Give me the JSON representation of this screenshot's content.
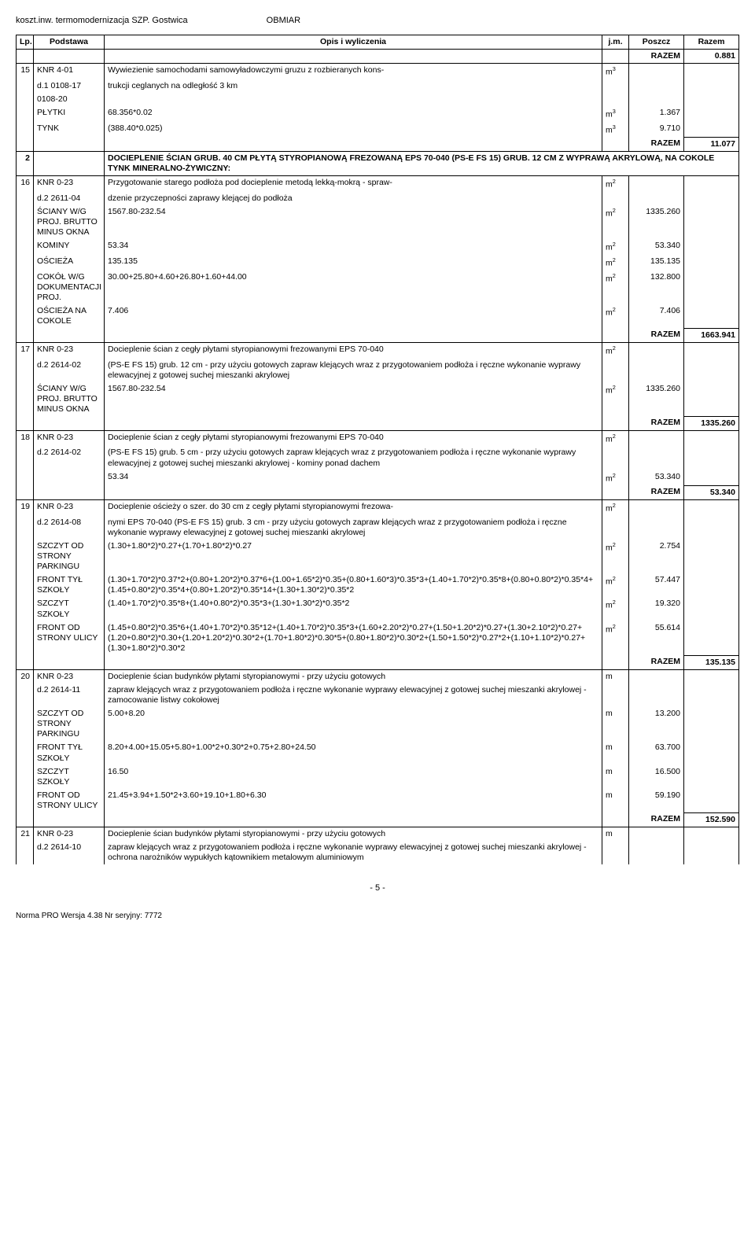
{
  "header": {
    "left": "koszt.inw. termomodernizacja SZP. Gostwica",
    "center": "OBMIAR"
  },
  "columns": [
    "Lp.",
    "Podstawa",
    "Opis i wyliczenia",
    "j.m.",
    "Poszcz",
    "Razem"
  ],
  "rows": [
    {
      "type": "razem",
      "razem_label": "RAZEM",
      "razem_val": "0.881"
    },
    {
      "type": "item",
      "lp": "15",
      "podstawa": "KNR 4-01",
      "opis": "Wywiezienie samochodami samowyładowczymi gruzu z rozbieranych kons-",
      "jm": "m3"
    },
    {
      "type": "cont",
      "podstawa": "d.1",
      "p2": "0108-17",
      "opis": "trukcji ceglanych na odległość 3 km"
    },
    {
      "type": "cont",
      "p2": "0108-20",
      "opis": ""
    },
    {
      "type": "calc",
      "p2": "PŁYTKI",
      "opis": "68.356*0.02",
      "jm": "m3",
      "poszcz": "1.367"
    },
    {
      "type": "calc",
      "p2": "TYNK",
      "opis": "(388.40*0.025)",
      "jm": "m3",
      "poszcz": "9.710"
    },
    {
      "type": "razem",
      "razem_label": "RAZEM",
      "razem_val": "11.077"
    },
    {
      "type": "section",
      "lp": "2",
      "opis": "DOCIEPLENIE ŚCIAN GRUB. 40 CM PŁYTĄ STYROPIANOWĄ FREZOWANĄ EPS 70-040 (PS-E FS 15) GRUB. 12 CM Z WYPRAWĄ AKRYLOWĄ, NA COKOLE TYNK MINERALNO-ŻYWICZNY:"
    },
    {
      "type": "item",
      "lp": "16",
      "podstawa": "KNR 0-23",
      "opis": "Przygotowanie starego podłoża pod docieplenie metodą lekką-mokrą - spraw-",
      "jm": "m2"
    },
    {
      "type": "cont",
      "podstawa": "d.2",
      "p2": "2611-04",
      "opis": "dzenie przyczepności zaprawy klejącej do podłoża"
    },
    {
      "type": "calc",
      "p2": "ŚCIANY W/G PROJ. BRUTTO MINUS OKNA",
      "opis": "1567.80-232.54",
      "jm": "m2",
      "poszcz": "1335.260"
    },
    {
      "type": "calc",
      "p2": "KOMINY",
      "opis": "53.34",
      "jm": "m2",
      "poszcz": "53.340"
    },
    {
      "type": "calc",
      "p2": "OŚCIEŻA",
      "opis": "135.135",
      "jm": "m2",
      "poszcz": "135.135"
    },
    {
      "type": "calc",
      "p2": "COKÓŁ W/G DOKUMENTACJI PROJ.",
      "opis": "30.00+25.80+4.60+26.80+1.60+44.00",
      "jm": "m2",
      "poszcz": "132.800"
    },
    {
      "type": "calc",
      "p2": "OŚCIEŻA NA COKOLE",
      "opis": "7.406",
      "jm": "m2",
      "poszcz": "7.406"
    },
    {
      "type": "razem",
      "razem_label": "RAZEM",
      "razem_val": "1663.941"
    },
    {
      "type": "item",
      "lp": "17",
      "podstawa": "KNR 0-23",
      "opis": "Docieplenie ścian z cegły płytami styropianowymi frezowanymi EPS 70-040",
      "jm": "m2"
    },
    {
      "type": "cont",
      "podstawa": "d.2",
      "p2": "2614-02",
      "opis": "(PS-E FS 15) grub. 12 cm - przy użyciu gotowych zapraw klejących wraz z przygotowaniem podłoża i ręczne wykonanie wyprawy elewacyjnej z gotowej suchej mieszanki akrylowej"
    },
    {
      "type": "calc",
      "p2": "ŚCIANY W/G PROJ. BRUTTO MINUS OKNA",
      "opis": "1567.80-232.54",
      "jm": "m2",
      "poszcz": "1335.260"
    },
    {
      "type": "razem",
      "razem_label": "RAZEM",
      "razem_val": "1335.260"
    },
    {
      "type": "item",
      "lp": "18",
      "podstawa": "KNR 0-23",
      "opis": "Docieplenie ścian z cegły płytami styropianowymi frezowanymi EPS 70-040",
      "jm": "m2"
    },
    {
      "type": "cont",
      "podstawa": "d.2",
      "p2": "2614-02",
      "opis": "(PS-E FS 15) grub. 5 cm - przy użyciu gotowych zapraw klejących wraz z przygotowaniem podłoża i ręczne wykonanie wyprawy elewacyjnej z gotowej suchej mieszanki akrylowej - kominy ponad dachem"
    },
    {
      "type": "calc",
      "p2": "",
      "opis": "53.34",
      "jm": "m2",
      "poszcz": "53.340"
    },
    {
      "type": "razem",
      "razem_label": "RAZEM",
      "razem_val": "53.340"
    },
    {
      "type": "item",
      "lp": "19",
      "podstawa": "KNR 0-23",
      "opis": "Docieplenie ościeży o szer. do 30 cm z cegły płytami styropianowymi frezowa-",
      "jm": "m2"
    },
    {
      "type": "cont",
      "podstawa": "d.2",
      "p2": "2614-08",
      "opis": "nymi EPS 70-040 (PS-E FS 15) grub. 3 cm - przy użyciu gotowych zapraw klejących wraz z przygotowaniem podłoża i ręczne wykonanie wyprawy elewacyjnej z gotowej suchej mieszanki akrylowej"
    },
    {
      "type": "calc",
      "p2": "SZCZYT OD STRONY PARKINGU",
      "opis": "(1.30+1.80*2)*0.27+(1.70+1.80*2)*0.27",
      "jm": "m2",
      "poszcz": "2.754"
    },
    {
      "type": "calc",
      "p2": "FRONT TYŁ SZKOŁY",
      "opis": "(1.30+1.70*2)*0.37*2+(0.80+1.20*2)*0.37*6+(1.00+1.65*2)*0.35+(0.80+1.60*3)*0.35*3+(1.40+1.70*2)*0.35*8+(0.80+0.80*2)*0.35*4+(1.45+0.80*2)*0.35*4+(0.80+1.20*2)*0.35*14+(1.30+1.30*2)*0.35*2",
      "jm": "m2",
      "poszcz": "57.447"
    },
    {
      "type": "calc",
      "p2": "SZCZYT SZKOŁY",
      "opis": "(1.40+1.70*2)*0.35*8+(1.40+0.80*2)*0.35*3+(1.30+1.30*2)*0.35*2",
      "jm": "m2",
      "poszcz": "19.320"
    },
    {
      "type": "calc",
      "p2": "FRONT OD STRONY ULICY",
      "opis": "(1.45+0.80*2)*0.35*6+(1.40+1.70*2)*0.35*12+(1.40+1.70*2)*0.35*3+(1.60+2.20*2)*0.27+(1.50+1.20*2)*0.27+(1.30+2.10*2)*0.27+(1.20+0.80*2)*0.30+(1.20+1.20*2)*0.30*2+(1.70+1.80*2)*0.30*5+(0.80+1.80*2)*0.30*2+(1.50+1.50*2)*0.27*2+(1.10+1.10*2)*0.27+(1.30+1.80*2)*0.30*2",
      "jm": "m2",
      "poszcz": "55.614"
    },
    {
      "type": "razem",
      "razem_label": "RAZEM",
      "razem_val": "135.135"
    },
    {
      "type": "item",
      "lp": "20",
      "podstawa": "KNR 0-23",
      "opis": "Docieplenie ścian budynków płytami styropianowymi - przy użyciu gotowych",
      "jm": "m"
    },
    {
      "type": "cont",
      "podstawa": "d.2",
      "p2": "2614-11",
      "opis": "zapraw klejących wraz z przygotowaniem podłoża i ręczne wykonanie wyprawy elewacyjnej z gotowej suchej mieszanki akrylowej - zamocowanie listwy cokołowej"
    },
    {
      "type": "calc",
      "p2": "SZCZYT OD STRONY PARKINGU",
      "opis": "5.00+8.20",
      "jm": "m",
      "poszcz": "13.200"
    },
    {
      "type": "calc",
      "p2": "FRONT TYŁ SZKOŁY",
      "opis": "8.20+4.00+15.05+5.80+1.00*2+0.30*2+0.75+2.80+24.50",
      "jm": "m",
      "poszcz": "63.700"
    },
    {
      "type": "calc",
      "p2": "SZCZYT SZKOŁY",
      "opis": "16.50",
      "jm": "m",
      "poszcz": "16.500"
    },
    {
      "type": "calc",
      "p2": "FRONT OD STRONY ULICY",
      "opis": "21.45+3.94+1.50*2+3.60+19.10+1.80+6.30",
      "jm": "m",
      "poszcz": "59.190"
    },
    {
      "type": "razem",
      "razem_label": "RAZEM",
      "razem_val": "152.590"
    },
    {
      "type": "item",
      "lp": "21",
      "podstawa": "KNR 0-23",
      "opis": "Docieplenie ścian budynków płytami styropianowymi - przy użyciu gotowych",
      "jm": "m"
    },
    {
      "type": "cont",
      "podstawa": "d.2",
      "p2": "2614-10",
      "opis": "zapraw klejących wraz z przygotowaniem podłoża i ręczne wykonanie wyprawy elewacyjnej z gotowej suchej mieszanki akrylowej - ochrona narożników wypukłych kątownikiem metalowym aluminiowym"
    }
  ],
  "footer": {
    "left": "Norma PRO Wersja 4.38 Nr seryjny: 7772",
    "page": "- 5 -"
  }
}
